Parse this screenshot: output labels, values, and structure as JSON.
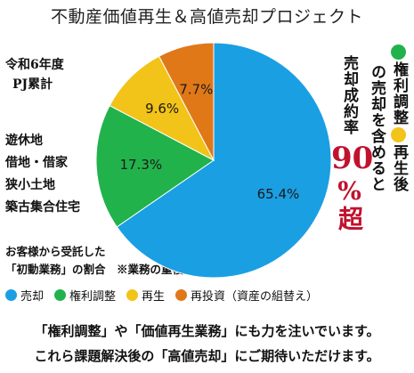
{
  "title": "不動産価値再生＆高値売却プロジェクト",
  "left_note": {
    "line1": "令和6年度",
    "line2": "PJ累計"
  },
  "categories_note": [
    "遊休地",
    "借地・借家",
    "狭小土地",
    "築古集合住宅"
  ],
  "caption": {
    "line1": "お客様から受託した",
    "line2": "「初動業務」の割合　※業務の重複有り"
  },
  "right_text": {
    "col_a1": "権利調整",
    "col_a2": "再生後",
    "col_b": "の売却を含めると",
    "col_c": "売却成約率",
    "big_number": "90",
    "big_unit": "%超"
  },
  "bottom_text": {
    "line1": "「権利調整」や「価値再生業務」にも力を注いでいます。",
    "line2": "これら課題解決後の「高値売却」にご期待いただけます。"
  },
  "chart_data": {
    "type": "pie",
    "series": [
      {
        "name": "売却",
        "value": 65.4,
        "label": "65.4%",
        "color": "#1a9fe3"
      },
      {
        "name": "権利調整",
        "value": 17.3,
        "label": "17.3%",
        "color": "#22b24c"
      },
      {
        "name": "再生",
        "value": 9.6,
        "label": "9.6%",
        "color": "#f2c318"
      },
      {
        "name": "再投資（資産の組替え）",
        "value": 7.7,
        "label": "7.7%",
        "color": "#e07818"
      }
    ]
  },
  "colors": {
    "accent_red": "#c0122f",
    "green_dot": "#22b24c",
    "yellow_dot": "#f2c318"
  }
}
